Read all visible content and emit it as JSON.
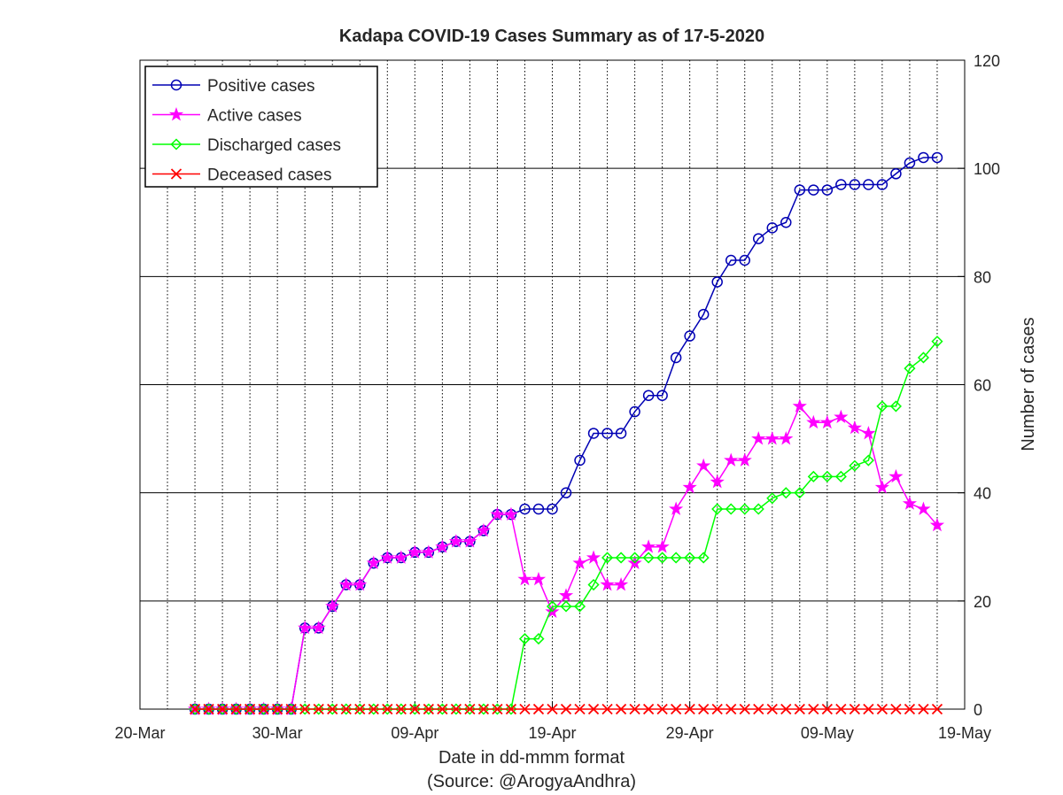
{
  "chart_data": {
    "type": "line",
    "title": "Kadapa COVID-19 Cases Summary as of 17-5-2020",
    "xlabel": "Date in dd-mmm format",
    "xlabel_note": "(Source: @ArogyaAndhra)",
    "ylabel": "Number of cases",
    "x_ticks": [
      "20-Mar",
      "30-Mar",
      "09-Apr",
      "19-Apr",
      "29-Apr",
      "09-May",
      "19-May"
    ],
    "x_range": [
      "2020-03-20",
      "2020-05-19"
    ],
    "y_ticks": [
      "0",
      "20",
      "40",
      "60",
      "80",
      "100",
      "120"
    ],
    "ylim": [
      0,
      120
    ],
    "y_axis_side": "right",
    "grid": {
      "x": "dotted",
      "y": "solid"
    },
    "legend_position": "top-left",
    "x": [
      "2020-03-24",
      "2020-03-25",
      "2020-03-26",
      "2020-03-27",
      "2020-03-28",
      "2020-03-29",
      "2020-03-30",
      "2020-03-31",
      "2020-04-01",
      "2020-04-02",
      "2020-04-03",
      "2020-04-04",
      "2020-04-05",
      "2020-04-06",
      "2020-04-07",
      "2020-04-08",
      "2020-04-09",
      "2020-04-10",
      "2020-04-11",
      "2020-04-12",
      "2020-04-13",
      "2020-04-14",
      "2020-04-15",
      "2020-04-16",
      "2020-04-17",
      "2020-04-18",
      "2020-04-19",
      "2020-04-20",
      "2020-04-21",
      "2020-04-22",
      "2020-04-23",
      "2020-04-24",
      "2020-04-25",
      "2020-04-26",
      "2020-04-27",
      "2020-04-28",
      "2020-04-29",
      "2020-04-30",
      "2020-05-01",
      "2020-05-02",
      "2020-05-03",
      "2020-05-04",
      "2020-05-05",
      "2020-05-06",
      "2020-05-07",
      "2020-05-08",
      "2020-05-09",
      "2020-05-10",
      "2020-05-11",
      "2020-05-12",
      "2020-05-13",
      "2020-05-14",
      "2020-05-15",
      "2020-05-16",
      "2020-05-17"
    ],
    "series": [
      {
        "name": "Positive cases",
        "color": "#0000b4",
        "marker": "circle",
        "values": [
          0,
          0,
          0,
          0,
          0,
          0,
          0,
          0,
          15,
          15,
          19,
          23,
          23,
          27,
          28,
          28,
          29,
          29,
          30,
          31,
          31,
          33,
          36,
          36,
          37,
          37,
          37,
          40,
          46,
          51,
          51,
          51,
          55,
          58,
          58,
          65,
          69,
          73,
          79,
          83,
          83,
          87,
          89,
          90,
          96,
          96,
          96,
          97,
          97,
          97,
          97,
          99,
          101,
          102,
          102
        ]
      },
      {
        "name": "Active cases",
        "color": "#ff00ff",
        "marker": "star",
        "values": [
          0,
          0,
          0,
          0,
          0,
          0,
          0,
          0,
          15,
          15,
          19,
          23,
          23,
          27,
          28,
          28,
          29,
          29,
          30,
          31,
          31,
          33,
          36,
          36,
          24,
          24,
          18,
          21,
          27,
          28,
          23,
          23,
          27,
          30,
          30,
          37,
          41,
          45,
          42,
          46,
          46,
          50,
          50,
          50,
          56,
          53,
          53,
          54,
          52,
          51,
          41,
          43,
          38,
          37,
          34
        ]
      },
      {
        "name": "Discharged cases",
        "color": "#00ff00",
        "marker": "diamond",
        "values": [
          0,
          0,
          0,
          0,
          0,
          0,
          0,
          0,
          0,
          0,
          0,
          0,
          0,
          0,
          0,
          0,
          0,
          0,
          0,
          0,
          0,
          0,
          0,
          0,
          13,
          13,
          19,
          19,
          19,
          23,
          28,
          28,
          28,
          28,
          28,
          28,
          28,
          28,
          37,
          37,
          37,
          37,
          39,
          40,
          40,
          43,
          43,
          43,
          45,
          46,
          56,
          56,
          63,
          65,
          68
        ]
      },
      {
        "name": "Deceased cases",
        "color": "#ff0000",
        "marker": "x",
        "values": [
          0,
          0,
          0,
          0,
          0,
          0,
          0,
          0,
          0,
          0,
          0,
          0,
          0,
          0,
          0,
          0,
          0,
          0,
          0,
          0,
          0,
          0,
          0,
          0,
          0,
          0,
          0,
          0,
          0,
          0,
          0,
          0,
          0,
          0,
          0,
          0,
          0,
          0,
          0,
          0,
          0,
          0,
          0,
          0,
          0,
          0,
          0,
          0,
          0,
          0,
          0,
          0,
          0,
          0,
          0
        ]
      }
    ]
  }
}
